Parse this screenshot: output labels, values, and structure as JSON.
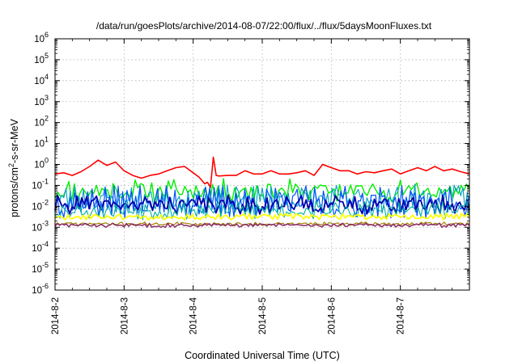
{
  "chart_data": {
    "type": "line",
    "title": "/data/run/goesPlots/archive/2014-08-07/22:00/flux/../flux/5daysMoonFluxes.txt",
    "xlabel": "Coordinated Universal Time (UTC)",
    "ylabel": "protons/cm2-s-sr-MeV",
    "ylabel_parts": {
      "before": "protons/cm",
      "sup": "2",
      "after": "-s-sr-MeV"
    },
    "yscale": "log",
    "ylim": [
      1e-06,
      1000000.0
    ],
    "xlim": [
      "2014-08-02 00:00",
      "2014-08-08 00:00"
    ],
    "xticks": [
      "2014-8-2",
      "2014-8-3",
      "2014-8-4",
      "2014-8-5",
      "2014-8-6",
      "2014-8-7"
    ],
    "yticks": [
      {
        "base": "10",
        "exp": "-6"
      },
      {
        "base": "10",
        "exp": "-5"
      },
      {
        "base": "10",
        "exp": "-4"
      },
      {
        "base": "10",
        "exp": "-3"
      },
      {
        "base": "10",
        "exp": "-2"
      },
      {
        "base": "10",
        "exp": "-1"
      },
      {
        "base": "10",
        "exp": "0"
      },
      {
        "base": "10",
        "exp": "1"
      },
      {
        "base": "10",
        "exp": "2"
      },
      {
        "base": "10",
        "exp": "3"
      },
      {
        "base": "10",
        "exp": "4"
      },
      {
        "base": "10",
        "exp": "5"
      },
      {
        "base": "10",
        "exp": "6"
      }
    ],
    "grid": true,
    "legend": "none",
    "series": [
      {
        "color": "#ff0000",
        "width": 1.6,
        "style": "smooth",
        "x": [
          "2014-08-02 00:00",
          "2014-08-02 03:00",
          "2014-08-02 06:00",
          "2014-08-02 09:00",
          "2014-08-02 12:00",
          "2014-08-02 15:00",
          "2014-08-02 18:00",
          "2014-08-02 21:00",
          "2014-08-03 00:00",
          "2014-08-03 03:00",
          "2014-08-03 06:00",
          "2014-08-03 09:00",
          "2014-08-03 12:00",
          "2014-08-03 15:00",
          "2014-08-03 18:00",
          "2014-08-03 21:00",
          "2014-08-04 00:00",
          "2014-08-04 02:00",
          "2014-08-04 04:00",
          "2014-08-04 05:00",
          "2014-08-04 06:00",
          "2014-08-04 07:00",
          "2014-08-04 08:00",
          "2014-08-04 09:00",
          "2014-08-04 12:00",
          "2014-08-04 15:00",
          "2014-08-04 18:00",
          "2014-08-04 21:00",
          "2014-08-05 00:00",
          "2014-08-05 03:00",
          "2014-08-05 06:00",
          "2014-08-05 09:00",
          "2014-08-05 12:00",
          "2014-08-05 15:00",
          "2014-08-05 18:00",
          "2014-08-05 21:00",
          "2014-08-06 00:00",
          "2014-08-06 03:00",
          "2014-08-06 06:00",
          "2014-08-06 09:00",
          "2014-08-06 12:00",
          "2014-08-06 15:00",
          "2014-08-06 18:00",
          "2014-08-06 21:00",
          "2014-08-07 00:00",
          "2014-08-07 03:00",
          "2014-08-07 06:00",
          "2014-08-07 09:00",
          "2014-08-07 12:00",
          "2014-08-07 15:00",
          "2014-08-07 18:00",
          "2014-08-07 21:00",
          "2014-08-08 00:00"
        ],
        "y": [
          0.35,
          0.4,
          0.3,
          0.45,
          0.8,
          1.6,
          0.9,
          1.3,
          0.5,
          0.3,
          0.22,
          0.3,
          0.35,
          0.5,
          0.7,
          0.8,
          0.4,
          0.25,
          0.12,
          0.14,
          0.08,
          2.2,
          0.3,
          0.28,
          0.3,
          0.3,
          0.5,
          0.35,
          0.35,
          0.5,
          0.35,
          0.35,
          0.4,
          0.5,
          0.3,
          1.0,
          0.7,
          0.5,
          0.5,
          0.35,
          0.45,
          0.4,
          0.5,
          0.6,
          0.35,
          0.5,
          0.7,
          0.5,
          0.8,
          0.5,
          0.6,
          0.45,
          0.35
        ]
      },
      {
        "color": "#00ee00",
        "width": 1.4,
        "style": "spiky",
        "x": [
          "2014-08-02 00:00",
          "2014-08-08 00:00"
        ],
        "level": 0.055,
        "spread": 0.45,
        "seed": 11,
        "samples": 150
      },
      {
        "color": "#00a0c0",
        "width": 1.1,
        "style": "spiky",
        "x": [
          "2014-08-02 00:00",
          "2014-08-08 00:00"
        ],
        "level": 0.022,
        "spread": 0.55,
        "seed": 23,
        "samples": 190
      },
      {
        "color": "#0050ff",
        "width": 1.2,
        "style": "spiky",
        "x": [
          "2014-08-02 00:00",
          "2014-08-08 00:00"
        ],
        "level": 0.016,
        "spread": 0.6,
        "seed": 37,
        "samples": 190
      },
      {
        "color": "#0000aa",
        "width": 1.8,
        "style": "spiky",
        "x": [
          "2014-08-02 00:00",
          "2014-08-08 00:00"
        ],
        "level": 0.012,
        "spread": 0.35,
        "seed": 41,
        "samples": 170
      },
      {
        "color": "#00b0a0",
        "width": 1.1,
        "style": "spiky",
        "x": [
          "2014-08-02 00:00",
          "2014-08-08 00:00"
        ],
        "level": 0.0065,
        "spread": 0.35,
        "seed": 53,
        "samples": 170
      },
      {
        "color": "#ffff00",
        "width": 1.8,
        "style": "spiky",
        "x": [
          "2014-08-02 00:00",
          "2014-08-08 00:00"
        ],
        "level": 0.0032,
        "spread": 0.12,
        "seed": 67,
        "samples": 160
      },
      {
        "color": "#a08000",
        "width": 1.2,
        "style": "spiky",
        "x": [
          "2014-08-02 00:00",
          "2014-08-08 00:00"
        ],
        "level": 0.00145,
        "spread": 0.07,
        "seed": 71,
        "samples": 180
      },
      {
        "color": "#8b2a6a",
        "width": 1.5,
        "style": "spiky",
        "x": [
          "2014-08-02 00:00",
          "2014-08-08 00:00"
        ],
        "level": 0.00125,
        "spread": 0.08,
        "seed": 83,
        "samples": 180
      }
    ]
  }
}
